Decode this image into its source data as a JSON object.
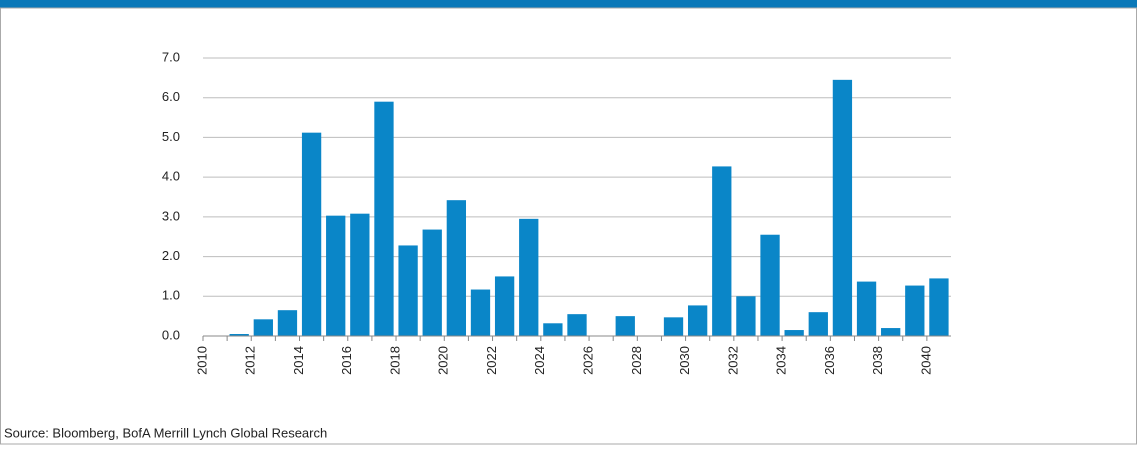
{
  "chart_data": {
    "type": "bar",
    "categories": [
      "2010",
      null,
      "2012",
      null,
      "2014",
      null,
      "2016",
      null,
      "2018",
      null,
      "2020",
      null,
      "2022",
      null,
      "2024",
      null,
      "2026",
      null,
      "2028",
      null,
      "2030",
      null,
      "2032",
      null,
      "2034",
      null,
      "2036",
      null,
      "2038",
      null,
      "2040"
    ],
    "values": [
      0,
      0.05,
      0.42,
      0.65,
      5.12,
      3.03,
      3.08,
      5.9,
      2.28,
      2.68,
      3.42,
      1.17,
      1.5,
      2.95,
      0.32,
      0.55,
      0,
      0.5,
      0,
      0.47,
      0.77,
      4.27,
      1.0,
      2.55,
      0.15,
      0.6,
      6.45,
      1.37,
      0.2,
      1.27,
      1.45
    ],
    "color": "#0a86c8",
    "ylim": [
      0,
      7
    ],
    "yticks": [
      {
        "value": 0,
        "label": "0.0"
      },
      {
        "value": 1,
        "label": "1.0"
      },
      {
        "value": 2,
        "label": "2.0"
      },
      {
        "value": 3,
        "label": "3.0"
      },
      {
        "value": 4,
        "label": "4.0"
      },
      {
        "value": 5,
        "label": "5.0"
      },
      {
        "value": 6,
        "label": "6.0"
      },
      {
        "value": 7,
        "label": "7.0"
      }
    ],
    "grid": true,
    "source": "Source: Bloomberg, BofA Merrill Lynch Global Research"
  }
}
